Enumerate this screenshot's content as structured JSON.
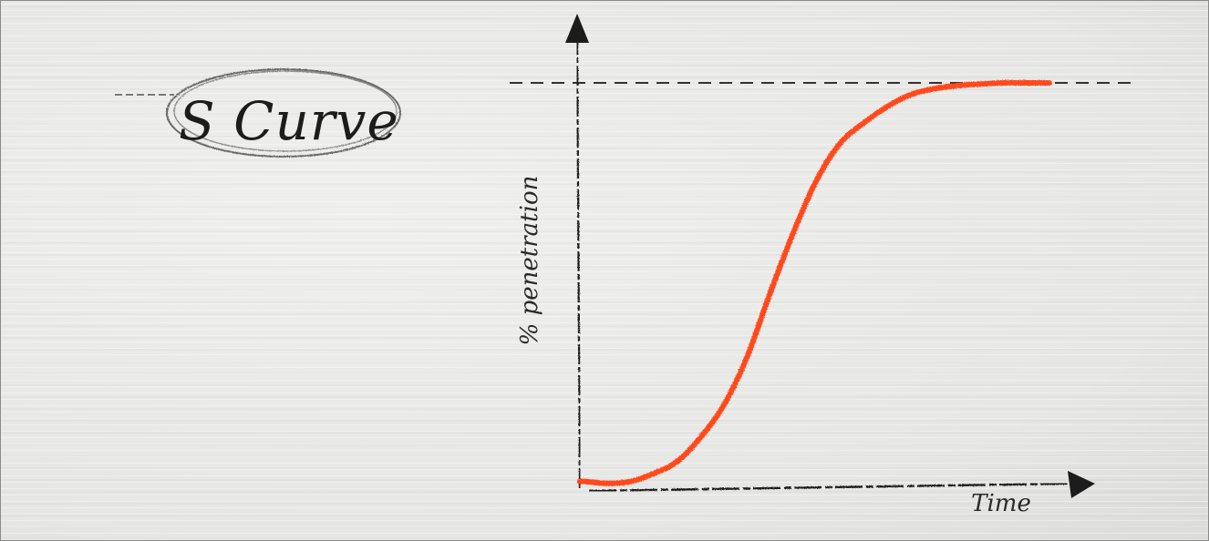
{
  "chart_data": {
    "type": "line",
    "title": "S Curve",
    "xlabel": "Time",
    "ylabel": "% penetration",
    "grid": false,
    "legend": "none",
    "xlim": [
      0,
      100
    ],
    "ylim": [
      0,
      100
    ],
    "saturation_line": 100,
    "series": [
      {
        "color": "#ff4a1c",
        "x": [
          -1,
          0,
          5,
          10,
          15,
          20,
          25,
          30,
          35,
          40,
          45,
          50,
          55,
          60,
          65,
          70,
          75,
          80,
          85,
          90,
          95,
          100
        ],
        "y": [
          1,
          1,
          0.5,
          1,
          3,
          6,
          12,
          20,
          32,
          48,
          63,
          76,
          85,
          90,
          94,
          97,
          98.5,
          99.3,
          99.7,
          100,
          100,
          100
        ]
      }
    ]
  },
  "colors": {
    "curve": "#ff4a1c",
    "ink": "#1c1c1c",
    "paper": "#e9e9e7"
  }
}
